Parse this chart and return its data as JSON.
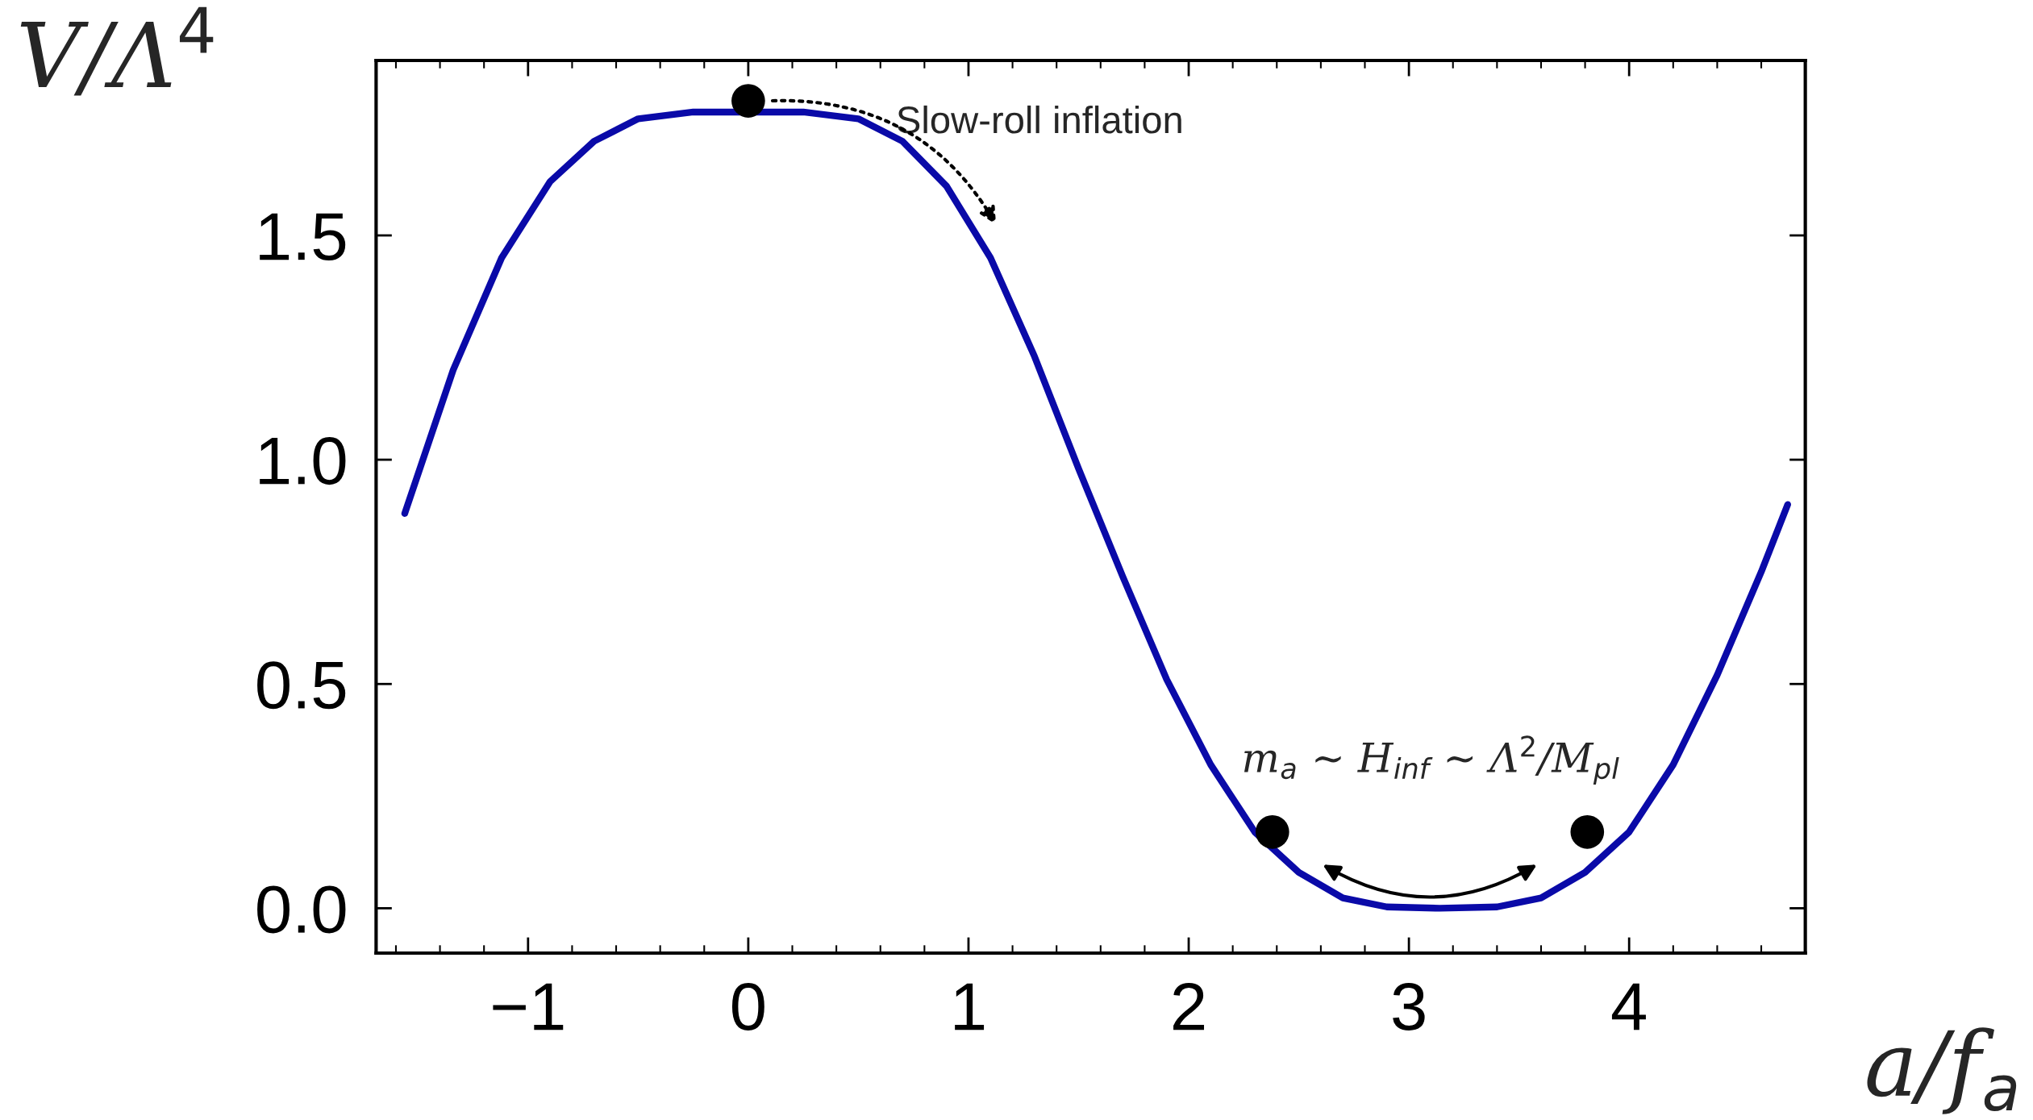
{
  "chart_data": {
    "type": "line",
    "xlabel": "a/f$_{a}$",
    "ylabel": "V/Λ$^{4}$",
    "xlim": [
      -1.69,
      4.8
    ],
    "ylim": [
      -0.1,
      1.89
    ],
    "xticks": [
      {
        "value": -1,
        "label": "−1"
      },
      0,
      1,
      2,
      3,
      4
    ],
    "yticks": [
      {
        "value": 0,
        "label": "0.0"
      },
      {
        "value": 0.5,
        "label": "0.5"
      },
      {
        "value": 1,
        "label": "1.0"
      },
      {
        "value": 1.5,
        "label": "1.5"
      }
    ],
    "grid": false,
    "legend": false,
    "series": [
      {
        "color": "#0a0aa8",
        "marker": "none",
        "line_style": "solid",
        "x": [
          -1.56,
          -1.34,
          -1.12,
          -0.9,
          -0.7,
          -0.5,
          -0.25,
          0.25,
          0.5,
          0.7,
          0.9,
          1.1,
          1.3,
          1.5,
          1.7,
          1.9,
          2.1,
          2.3,
          2.5,
          2.7,
          2.9,
          3.14,
          3.4,
          3.6,
          3.8,
          4.0,
          4.2,
          4.4,
          4.6,
          4.72
        ],
        "values": [
          0.88,
          1.2,
          1.45,
          1.62,
          1.71,
          1.76,
          1.775,
          1.775,
          1.76,
          1.71,
          1.61,
          1.45,
          1.23,
          0.98,
          0.74,
          0.51,
          0.32,
          0.17,
          0.08,
          0.023,
          0.003,
          0,
          0.003,
          0.023,
          0.08,
          0.17,
          0.32,
          0.52,
          0.75,
          0.9
        ]
      },
      {
        "type": "scatter",
        "color": "#000000",
        "marker": "circle",
        "x": [
          0,
          2.38,
          3.81
        ],
        "values": [
          1.8,
          0.17,
          0.17
        ]
      }
    ],
    "annotations": [
      "Slow-roll inflation",
      "m$_{a}$ ∼ H$_{inf}$ ∼ Λ$^{2}$/M$_{pl}$"
    ]
  }
}
